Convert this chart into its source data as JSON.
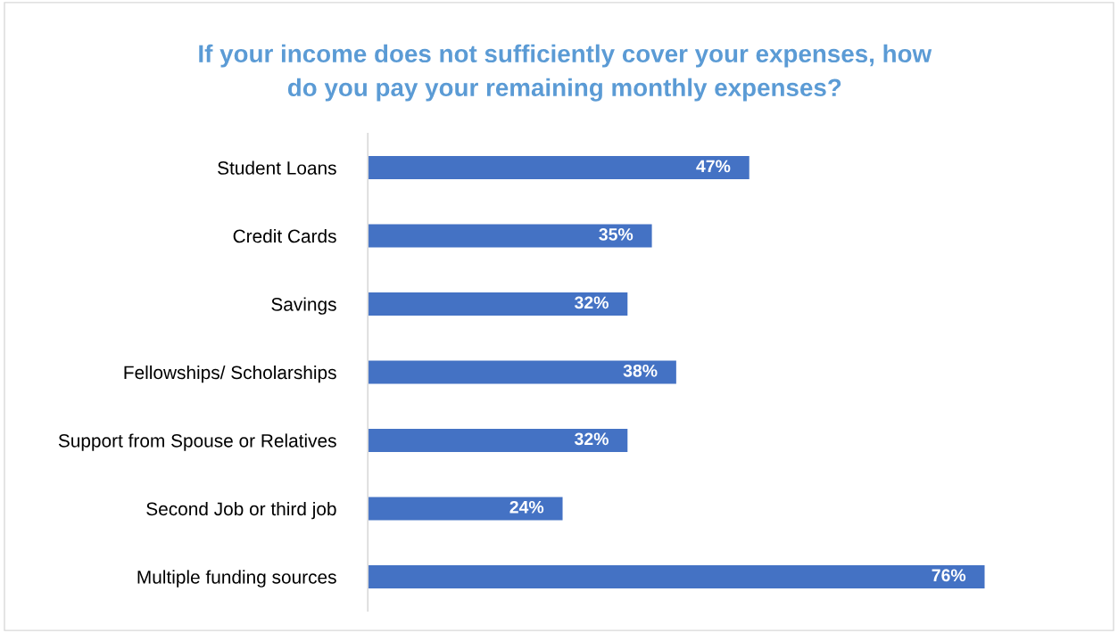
{
  "chart_data": {
    "type": "bar",
    "orientation": "horizontal",
    "title": "If your income does not sufficiently cover your expenses, how\ndo you pay your remaining monthly expenses?",
    "categories": [
      "Student Loans",
      "Credit Cards",
      "Savings",
      "Fellowships/ Scholarships",
      "Support from Spouse or Relatives",
      "Second Job or third job",
      "Multiple funding sources"
    ],
    "values": [
      47,
      35,
      32,
      38,
      32,
      24,
      76
    ],
    "value_labels": [
      "47%",
      "35%",
      "32%",
      "38%",
      "32%",
      "24%",
      "76%"
    ],
    "color": "#4472c4",
    "grid": false,
    "legend": false,
    "tick_labels": "y"
  }
}
